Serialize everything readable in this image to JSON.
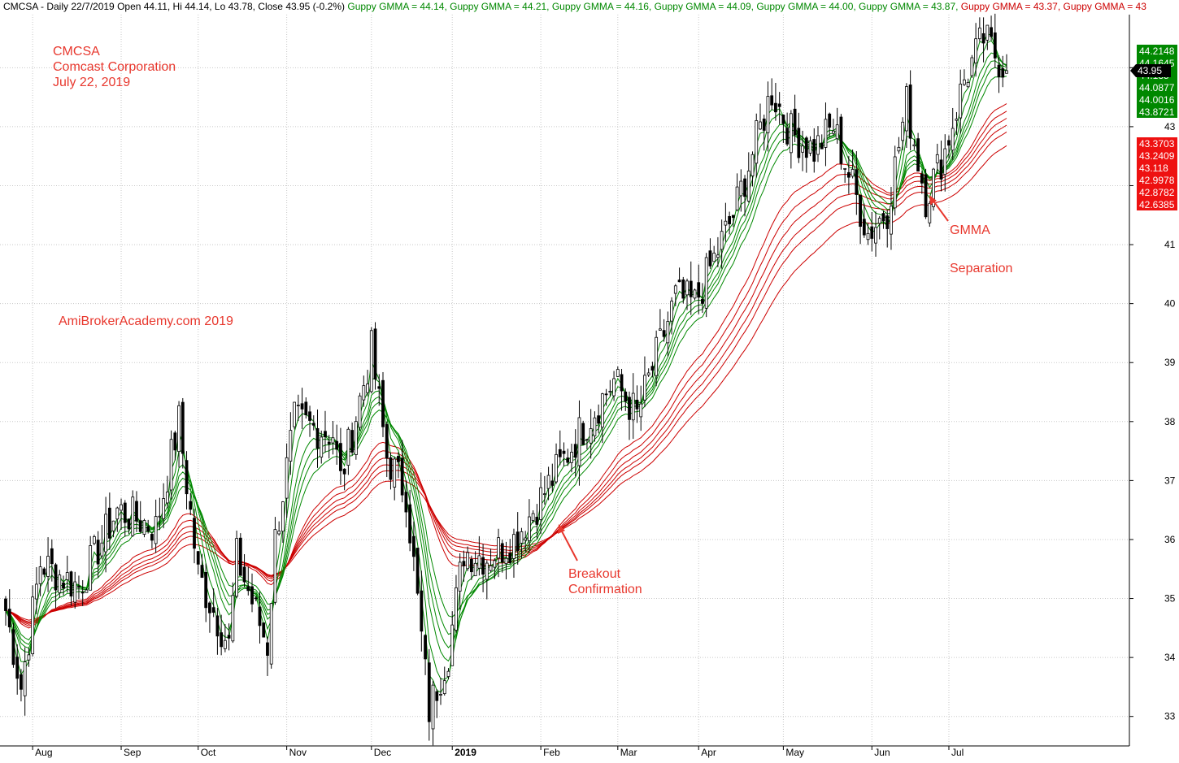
{
  "header": {
    "symbol_line": "CMCSA - Daily 22/7/2019 Open 44.11, Hi 44.14, Lo 43.78, Close 43.95 (-0.2%)",
    "gmma_items": [
      {
        "text": "Guppy GMMA = 44.14,",
        "color": "#008800"
      },
      {
        "text": "Guppy GMMA = 44.21,",
        "color": "#008800"
      },
      {
        "text": "Guppy GMMA = 44.16,",
        "color": "#008800"
      },
      {
        "text": "Guppy GMMA = 44.09,",
        "color": "#008800"
      },
      {
        "text": "Guppy GMMA = 44.00,",
        "color": "#008800"
      },
      {
        "text": "Guppy GMMA = 43.87,",
        "color": "#008800"
      },
      {
        "text": "Guppy GMMA = 43.37,",
        "color": "#cc0000"
      },
      {
        "text": "Guppy GMMA = 43",
        "color": "#cc0000"
      }
    ]
  },
  "annotations": {
    "title_lines": [
      "CMCSA",
      "Comcast Corporation",
      "July 22, 2019"
    ],
    "watermark": "AmiBrokerAcademy.com  2019",
    "breakout_lines": [
      "Breakout",
      "Confirmation"
    ],
    "separation_lines": [
      "GMMA",
      "Separation"
    ],
    "text_color": "#e8382e"
  },
  "colors": {
    "short_term": "#008800",
    "long_term": "#cc0000",
    "candle_up": "#ffffff",
    "candle_down": "#000000",
    "grid": "#c8c8c8",
    "price_label_bg": "#000000"
  },
  "chart_data": {
    "type": "candlestick",
    "ylim": [
      32.5,
      44.9
    ],
    "yticks": [
      33,
      34,
      35,
      36,
      37,
      38,
      39,
      40,
      41,
      42,
      43,
      44
    ],
    "xticks": [
      "Aug",
      "Sep",
      "Oct",
      "Nov",
      "Dec",
      "2019",
      "Feb",
      "Mar",
      "Apr",
      "May",
      "Jun",
      "Jul"
    ],
    "grid": true,
    "last_price": "43.95",
    "short_term_values": [
      "44.2148",
      "44.1645",
      "44.135",
      "44.0877",
      "44.0016",
      "43.8721"
    ],
    "long_term_values": [
      "43.3703",
      "43.2409",
      "43.118",
      "42.9978",
      "42.8782",
      "42.6385"
    ],
    "series": [
      {
        "name": "Close",
        "type": "candlestick",
        "key_points": [
          {
            "date": "2018-07-23",
            "close": 34.8
          },
          {
            "date": "2018-07-27",
            "close": 33.5
          },
          {
            "date": "2018-08-03",
            "close": 35.6
          },
          {
            "date": "2018-08-17",
            "close": 35.2
          },
          {
            "date": "2018-08-31",
            "close": 36.5
          },
          {
            "date": "2018-09-14",
            "close": 36.2
          },
          {
            "date": "2018-09-24",
            "close": 38.0
          },
          {
            "date": "2018-10-01",
            "close": 35.4
          },
          {
            "date": "2018-10-11",
            "close": 34.2
          },
          {
            "date": "2018-10-15",
            "close": 35.7
          },
          {
            "date": "2018-10-25",
            "close": 34.2
          },
          {
            "date": "2018-10-29",
            "close": 36.0
          },
          {
            "date": "2018-11-05",
            "close": 38.0
          },
          {
            "date": "2018-11-19",
            "close": 37.8
          },
          {
            "date": "2018-11-21",
            "close": 37.0
          },
          {
            "date": "2018-12-03",
            "close": 39.2
          },
          {
            "date": "2018-12-07",
            "close": 37.4
          },
          {
            "date": "2018-12-14",
            "close": 36.8
          },
          {
            "date": "2018-12-24",
            "close": 33.1
          },
          {
            "date": "2018-12-31",
            "close": 34.1
          },
          {
            "date": "2019-01-04",
            "close": 35.8
          },
          {
            "date": "2019-01-14",
            "close": 35.7
          },
          {
            "date": "2019-01-23",
            "close": 36.0
          },
          {
            "date": "2019-02-01",
            "close": 36.7
          },
          {
            "date": "2019-02-15",
            "close": 37.8
          },
          {
            "date": "2019-02-28",
            "close": 38.7
          },
          {
            "date": "2019-03-08",
            "close": 38.1
          },
          {
            "date": "2019-03-22",
            "close": 40.1
          },
          {
            "date": "2019-03-29",
            "close": 40.0
          },
          {
            "date": "2019-04-12",
            "close": 41.5
          },
          {
            "date": "2019-04-26",
            "close": 43.6
          },
          {
            "date": "2019-05-03",
            "close": 42.9
          },
          {
            "date": "2019-05-13",
            "close": 42.6
          },
          {
            "date": "2019-05-20",
            "close": 43.0
          },
          {
            "date": "2019-05-31",
            "close": 41.2
          },
          {
            "date": "2019-06-07",
            "close": 41.6
          },
          {
            "date": "2019-06-14",
            "close": 43.4
          },
          {
            "date": "2019-06-21",
            "close": 41.8
          },
          {
            "date": "2019-06-28",
            "close": 42.6
          },
          {
            "date": "2019-07-05",
            "close": 43.8
          },
          {
            "date": "2019-07-12",
            "close": 44.5
          },
          {
            "date": "2019-07-22",
            "close": 43.95
          }
        ]
      },
      {
        "name": "Guppy GMMA",
        "group": "short",
        "spreads": [
          0.0,
          0.35,
          0.7,
          1.05,
          1.4,
          1.9
        ],
        "last": [
          "44.2148",
          "44.1645",
          "44.135",
          "44.0877",
          "44.0016",
          "43.8721"
        ]
      },
      {
        "name": "Guppy GMMA",
        "group": "long",
        "spreads": [
          0.0,
          0.7,
          1.4,
          2.1,
          2.8,
          3.6
        ],
        "last": [
          "43.3703",
          "43.2409",
          "43.118",
          "42.9978",
          "42.8782",
          "42.6385"
        ]
      }
    ]
  }
}
